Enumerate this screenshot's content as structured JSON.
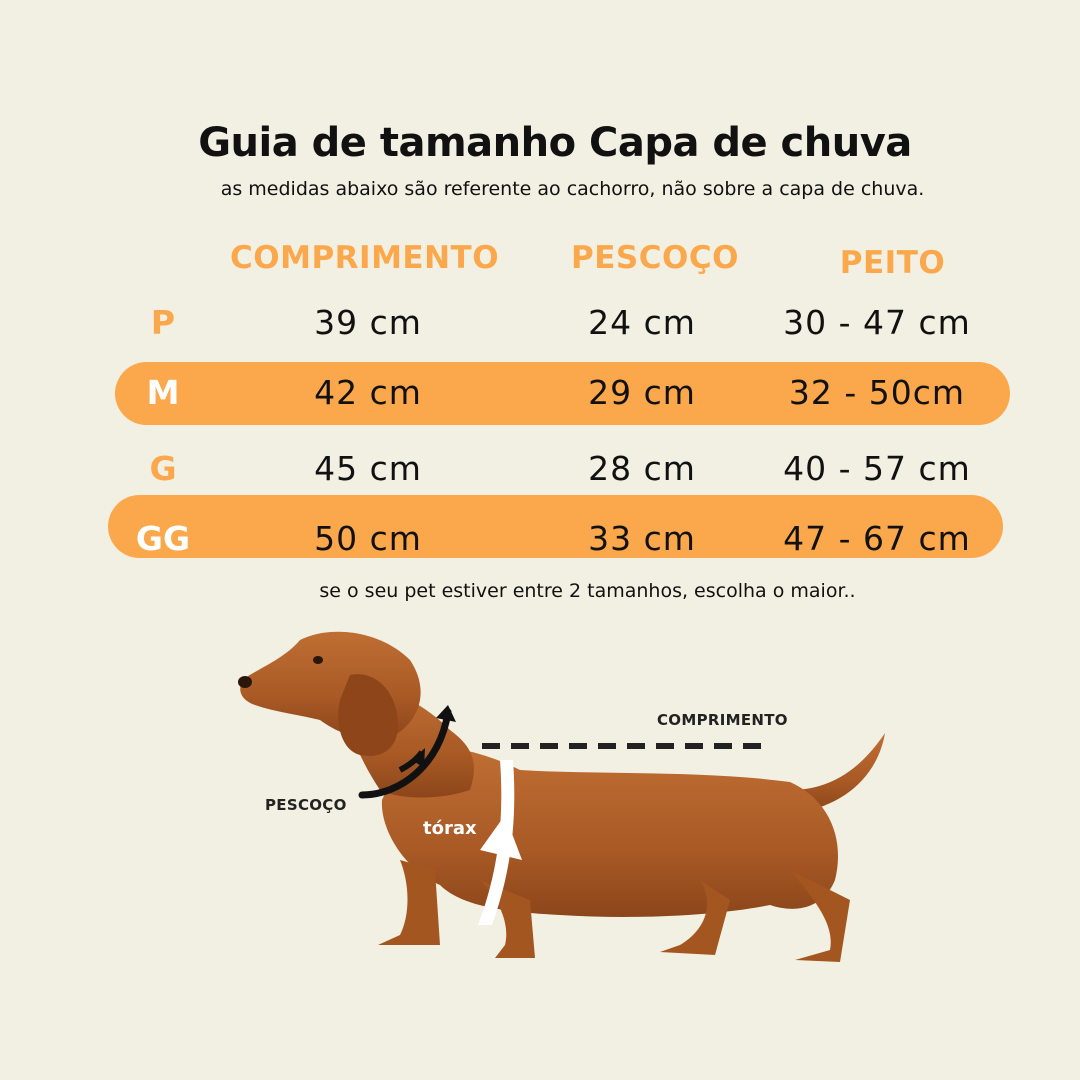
{
  "title": "Guia de tamanho Capa de chuva",
  "subtitle": "as medidas abaixo são referente ao cachorro, não sobre a capa de chuva.",
  "table": {
    "headers": [
      "COMPRIMENTO",
      "PESCOÇO",
      "PEITO"
    ],
    "rows": [
      {
        "size": "P",
        "comprimento": "39 cm",
        "pescoco": "24 cm",
        "peito": "30 - 47 cm",
        "highlight": false
      },
      {
        "size": "M",
        "comprimento": "42 cm",
        "pescoco": "29 cm",
        "peito": "32 - 50cm",
        "highlight": true
      },
      {
        "size": "G",
        "comprimento": "45 cm",
        "pescoco": "28 cm",
        "peito": "40 - 57 cm",
        "highlight": false
      },
      {
        "size": "GG",
        "comprimento": "50 cm",
        "pescoco": "33 cm",
        "peito": "47 - 67 cm",
        "highlight": true
      }
    ]
  },
  "footnote": "se o seu pet estiver entre 2 tamanhos, escolha o maior..",
  "illustration": {
    "label_comprimento": "COMPRIMENTO",
    "label_pescoco": "PESCOÇO",
    "label_torax": "tórax"
  },
  "colors": {
    "background": "#f2f0e2",
    "accent": "#fba84c",
    "text": "#111111",
    "dog": "#b5642b"
  }
}
